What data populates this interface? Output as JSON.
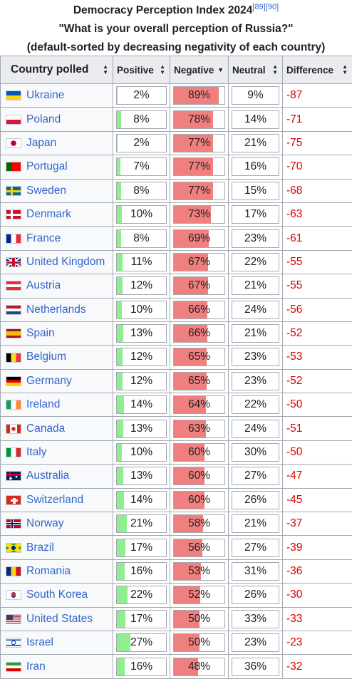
{
  "caption": {
    "line1": "Democracy Perception Index 2024",
    "ref1": "[89]",
    "ref2": "[90]",
    "line2": "\"What is your overall perception of Russia?\"",
    "line3": "(default-sorted by decreasing negativity of each country)"
  },
  "headers": {
    "country": "Country polled",
    "positive": "Positive",
    "negative": "Negative",
    "neutral": "Neutral",
    "difference": "Difference"
  },
  "colors": {
    "positive": "#90ee90",
    "negative": "#f08080",
    "difference_text": "#dd0000",
    "link": "#3366cc"
  },
  "rows": [
    {
      "country": "Ukraine",
      "flag": "ukraine-flag",
      "positive": "2%",
      "negative": "89%",
      "neutral": "9%",
      "difference": "-87"
    },
    {
      "country": "Poland",
      "flag": "poland-flag",
      "positive": "8%",
      "negative": "78%",
      "neutral": "14%",
      "difference": "-71"
    },
    {
      "country": "Japan",
      "flag": "japan-flag",
      "positive": "2%",
      "negative": "77%",
      "neutral": "21%",
      "difference": "-75"
    },
    {
      "country": "Portugal",
      "flag": "portugal-flag",
      "positive": "7%",
      "negative": "77%",
      "neutral": "16%",
      "difference": "-70"
    },
    {
      "country": "Sweden",
      "flag": "sweden-flag",
      "positive": "8%",
      "negative": "77%",
      "neutral": "15%",
      "difference": "-68"
    },
    {
      "country": "Denmark",
      "flag": "denmark-flag",
      "positive": "10%",
      "negative": "73%",
      "neutral": "17%",
      "difference": "-63"
    },
    {
      "country": "France",
      "flag": "france-flag",
      "positive": "8%",
      "negative": "69%",
      "neutral": "23%",
      "difference": "-61"
    },
    {
      "country": "United Kingdom",
      "flag": "uk-flag",
      "positive": "11%",
      "negative": "67%",
      "neutral": "22%",
      "difference": "-55"
    },
    {
      "country": "Austria",
      "flag": "austria-flag",
      "positive": "12%",
      "negative": "67%",
      "neutral": "21%",
      "difference": "-55"
    },
    {
      "country": "Netherlands",
      "flag": "netherlands-flag",
      "positive": "10%",
      "negative": "66%",
      "neutral": "24%",
      "difference": "-56"
    },
    {
      "country": "Spain",
      "flag": "spain-flag",
      "positive": "13%",
      "negative": "66%",
      "neutral": "21%",
      "difference": "-52"
    },
    {
      "country": "Belgium",
      "flag": "belgium-flag",
      "positive": "12%",
      "negative": "65%",
      "neutral": "23%",
      "difference": "-53"
    },
    {
      "country": "Germany",
      "flag": "germany-flag",
      "positive": "12%",
      "negative": "65%",
      "neutral": "23%",
      "difference": "-52"
    },
    {
      "country": "Ireland",
      "flag": "ireland-flag",
      "positive": "14%",
      "negative": "64%",
      "neutral": "22%",
      "difference": "-50"
    },
    {
      "country": "Canada",
      "flag": "canada-flag",
      "positive": "13%",
      "negative": "63%",
      "neutral": "24%",
      "difference": "-51"
    },
    {
      "country": "Italy",
      "flag": "italy-flag",
      "positive": "10%",
      "negative": "60%",
      "neutral": "30%",
      "difference": "-50"
    },
    {
      "country": "Australia",
      "flag": "australia-flag",
      "positive": "13%",
      "negative": "60%",
      "neutral": "27%",
      "difference": "-47"
    },
    {
      "country": "Switzerland",
      "flag": "switzerland-flag",
      "positive": "14%",
      "negative": "60%",
      "neutral": "26%",
      "difference": "-45"
    },
    {
      "country": "Norway",
      "flag": "norway-flag",
      "positive": "21%",
      "negative": "58%",
      "neutral": "21%",
      "difference": "-37"
    },
    {
      "country": "Brazil",
      "flag": "brazil-flag",
      "positive": "17%",
      "negative": "56%",
      "neutral": "27%",
      "difference": "-39"
    },
    {
      "country": "Romania",
      "flag": "romania-flag",
      "positive": "16%",
      "negative": "53%",
      "neutral": "31%",
      "difference": "-36"
    },
    {
      "country": "South Korea",
      "flag": "south-korea-flag",
      "positive": "22%",
      "negative": "52%",
      "neutral": "26%",
      "difference": "-30"
    },
    {
      "country": "United States",
      "flag": "usa-flag",
      "positive": "17%",
      "negative": "50%",
      "neutral": "33%",
      "difference": "-33"
    },
    {
      "country": "Israel",
      "flag": "israel-flag",
      "positive": "27%",
      "negative": "50%",
      "neutral": "23%",
      "difference": "-23"
    },
    {
      "country": "Iran",
      "flag": "iran-flag",
      "positive": "16%",
      "negative": "48%",
      "neutral": "36%",
      "difference": "-32"
    }
  ]
}
